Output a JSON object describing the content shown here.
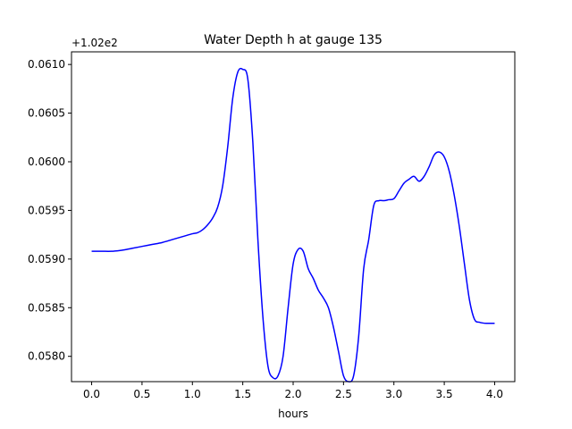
{
  "chart_data": {
    "type": "line",
    "title": "Water Depth h at gauge 135",
    "xlabel": "hours",
    "ylabel": "",
    "offset_label": "+1.02e2",
    "xlim": [
      -0.2,
      4.2
    ],
    "ylim": [
      0.05774,
      0.06113
    ],
    "xticks": [
      0.0,
      0.5,
      1.0,
      1.5,
      2.0,
      2.5,
      3.0,
      3.5,
      4.0
    ],
    "xtick_labels": [
      "0.0",
      "0.5",
      "1.0",
      "1.5",
      "2.0",
      "2.5",
      "3.0",
      "3.5",
      "4.0"
    ],
    "yticks": [
      0.058,
      0.0585,
      0.059,
      0.0595,
      0.06,
      0.0605,
      0.061
    ],
    "ytick_labels": [
      "0.0580",
      "0.0585",
      "0.0590",
      "0.0595",
      "0.0600",
      "0.0605",
      "0.0610"
    ],
    "grid": false,
    "legend": "none",
    "series": [
      {
        "color": "#0000ff",
        "x": [
          0.0,
          0.1,
          0.2,
          0.3,
          0.4,
          0.5,
          0.6,
          0.7,
          0.8,
          0.9,
          1.0,
          1.05,
          1.1,
          1.15,
          1.2,
          1.25,
          1.3,
          1.35,
          1.4,
          1.45,
          1.5,
          1.55,
          1.6,
          1.65,
          1.7,
          1.75,
          1.8,
          1.85,
          1.9,
          1.95,
          2.0,
          2.05,
          2.1,
          2.15,
          2.2,
          2.25,
          2.3,
          2.35,
          2.4,
          2.45,
          2.5,
          2.55,
          2.6,
          2.65,
          2.7,
          2.75,
          2.8,
          2.85,
          2.9,
          2.95,
          3.0,
          3.05,
          3.1,
          3.15,
          3.2,
          3.25,
          3.3,
          3.35,
          3.4,
          3.45,
          3.5,
          3.55,
          3.6,
          3.65,
          3.7,
          3.75,
          3.8,
          3.85,
          3.9,
          3.95,
          4.0
        ],
        "y": [
          0.05908,
          0.05908,
          0.05908,
          0.05909,
          0.05911,
          0.05913,
          0.05915,
          0.05917,
          0.0592,
          0.05923,
          0.05926,
          0.05927,
          0.0593,
          0.05935,
          0.05942,
          0.05953,
          0.05975,
          0.06015,
          0.06065,
          0.06092,
          0.06095,
          0.06085,
          0.0602,
          0.0592,
          0.0584,
          0.0579,
          0.05778,
          0.0578,
          0.058,
          0.0585,
          0.05895,
          0.0591,
          0.05908,
          0.0589,
          0.0588,
          0.05868,
          0.0586,
          0.0585,
          0.0583,
          0.05805,
          0.0578,
          0.05774,
          0.0578,
          0.0582,
          0.0589,
          0.0592,
          0.05955,
          0.0596,
          0.0596,
          0.05961,
          0.05962,
          0.0597,
          0.05978,
          0.05982,
          0.05985,
          0.0598,
          0.05985,
          0.05995,
          0.06007,
          0.0601,
          0.06005,
          0.0599,
          0.05965,
          0.05933,
          0.05895,
          0.05858,
          0.05838,
          0.05835,
          0.05834,
          0.05834,
          0.05834
        ]
      }
    ]
  }
}
